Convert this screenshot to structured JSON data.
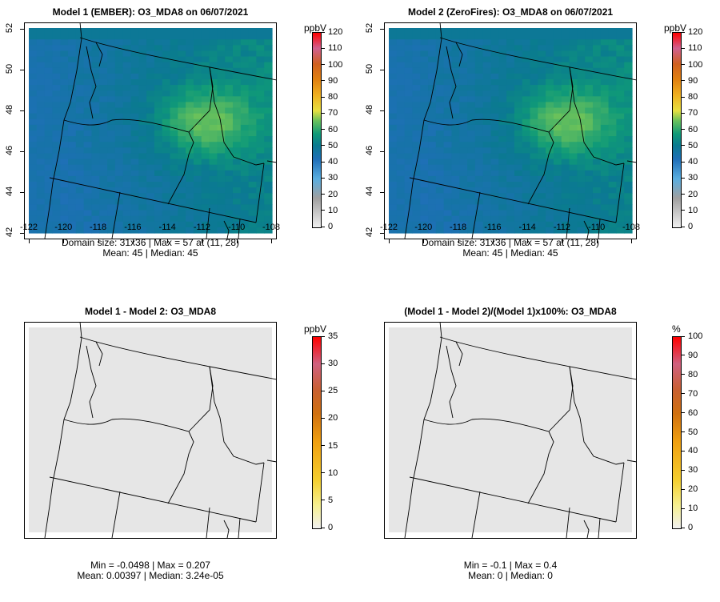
{
  "panels": [
    {
      "title": "Model 1 (EMBER): O3_MDA8 on 06/07/2021",
      "stats1": "Domain size: 31x36 | Max = 57 at (11, 28)",
      "stats2": "Mean: 45 |  Median: 45",
      "unit": "ppbV",
      "ticks": [
        "120",
        "110",
        "100",
        "90",
        "80",
        "70",
        "60",
        "50",
        "40",
        "30",
        "20",
        "10",
        "0"
      ],
      "kind": "field",
      "axes": true
    },
    {
      "title": "Model 2 (ZeroFires): O3_MDA8 on 06/07/2021",
      "stats1": "Domain size: 31x36 | Max = 57 at (11, 28)",
      "stats2": "Mean: 45 |  Median: 45",
      "unit": "ppbV",
      "ticks": [
        "120",
        "110",
        "100",
        "90",
        "80",
        "70",
        "60",
        "50",
        "40",
        "30",
        "20",
        "10",
        "0"
      ],
      "kind": "field",
      "axes": true
    },
    {
      "title": "Model 1 - Model 2: O3_MDA8",
      "stats1": "Min = -0.0498 | Max = 0.207",
      "stats2": "Mean: 0.00397 |  Median: 3.24e-05",
      "unit": "ppbV",
      "ticks": [
        "35",
        "30",
        "25",
        "20",
        "15",
        "10",
        "5",
        "0"
      ],
      "kind": "diff",
      "axes": false
    },
    {
      "title": "(Model 1 - Model 2)/(Model 1)x100%: O3_MDA8",
      "stats1": "Min = -0.1 | Max = 0.4",
      "stats2": "Mean: 0 |  Median: 0",
      "unit": "%",
      "ticks": [
        "100",
        "90",
        "80",
        "70",
        "60",
        "50",
        "40",
        "30",
        "20",
        "10",
        "0"
      ],
      "kind": "diff",
      "axes": false
    }
  ],
  "axes": {
    "x_ticks": [
      "-122",
      "-120",
      "-118",
      "-116",
      "-114",
      "-112",
      "-110",
      "-108"
    ],
    "y_ticks": [
      "42",
      "44",
      "46",
      "48",
      "50",
      "52"
    ]
  },
  "colors": {
    "low": "#1f6fb8",
    "mid": "#0f9a78",
    "high": "#6cc25a",
    "diff_bg": "#e6e6e6"
  },
  "chart_data": {
    "type": "heatmap",
    "variable": "O3_MDA8",
    "date": "06/07/2021",
    "domain": "31x36",
    "max": 57,
    "mean": 45,
    "median": 45
  }
}
